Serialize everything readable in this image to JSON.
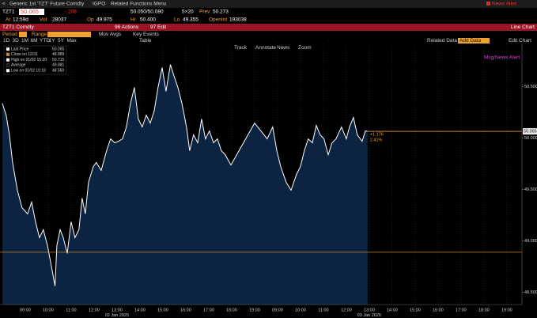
{
  "header": {
    "back": "<",
    "security_desc": "Generic 1st 'TZT' Future Comdty",
    "igpo": "IGPO",
    "related": "Related Functions Menu",
    "news_alert": "News Alert",
    "ticker": "TZT1",
    "price": "50.065",
    "change": "-.208",
    "bid_ask": "50.050/50.080",
    "size": "5×20",
    "prev_label": "Prev",
    "prev": "50.273",
    "at_label": "At",
    "at": "12:59d",
    "vol_label": "Vol",
    "vol": "28037",
    "op_label": "Op",
    "op": "49.975",
    "hi_label": "Hi",
    "hi": "50.400",
    "lo_label": "Lo",
    "lo": "49.355",
    "oi_label": "OpenInt",
    "oi": "193038"
  },
  "toolbar": {
    "security": "TZT1 Comdty",
    "actions": "96 Actions",
    "edit": "97 Edit",
    "chart_type": "Line Chart",
    "period_label": "Period",
    "range_label": "Range",
    "mov_avgs": "Mov Avgs",
    "key_events": "Key Events",
    "ranges": [
      "1D",
      "3D",
      "1M",
      "6M",
      "YTD",
      "1Y",
      "5Y",
      "Max"
    ],
    "table": "Table",
    "tools": [
      "Track",
      "Annotate",
      "News",
      "Zoom"
    ],
    "related_data": "Related Data",
    "add_data": "Add Data",
    "edit_chart": "Edit Chart"
  },
  "chart_data": {
    "type": "line",
    "msg_alert": "Msg/News Alert",
    "legend": [
      {
        "name": "Last Price",
        "value": "50.065"
      },
      {
        "name": "Close on 12/31",
        "value": "48.889"
      },
      {
        "name": "High on 01/02 15:20",
        "value": "50.715"
      },
      {
        "name": "Average",
        "value": "49.881"
      },
      {
        "name": "Low on 01/02 10:18",
        "value": "48.560"
      }
    ],
    "annotation": {
      "change": "+1.176",
      "pct": "2.41%"
    },
    "close_value": 48.889,
    "last_price": 50.065,
    "x": [
      8.0,
      8.17,
      8.31,
      8.45,
      8.66,
      8.86,
      9.1,
      9.28,
      9.45,
      9.62,
      9.79,
      9.97,
      10.1,
      10.3,
      10.38,
      10.52,
      10.66,
      10.83,
      11.0,
      11.17,
      11.34,
      11.48,
      11.62,
      11.76,
      11.97,
      12.1,
      12.31,
      12.55,
      12.72,
      12.9,
      13.07,
      13.24,
      13.41,
      13.59,
      13.76,
      13.93,
      14.1,
      14.28,
      14.45,
      14.62,
      14.79,
      14.97,
      15.14,
      15.33,
      15.48,
      15.66,
      15.83,
      16.03,
      16.17,
      16.34,
      16.52,
      16.69,
      16.86,
      17.03,
      17.21,
      17.38,
      17.55,
      17.72,
      17.97,
      19.0,
      19.28,
      19.55,
      19.79,
      19.97,
      20.14,
      20.38,
      20.59,
      20.83,
      21.0,
      21.17,
      21.34,
      21.52,
      21.69,
      21.86,
      22.03,
      22.21,
      22.38,
      22.55,
      22.79,
      23.0,
      23.14,
      23.31,
      23.48,
      23.69,
      23.83,
      23.93
    ],
    "series": [
      {
        "name": "Last Price",
        "color": "#ffffff",
        "fill": "#0c2442",
        "values": [
          50.338,
          50.223,
          50.031,
          49.762,
          49.492,
          49.323,
          49.262,
          49.377,
          49.185,
          49.031,
          49.108,
          48.954,
          48.8,
          48.56,
          48.954,
          49.108,
          49.031,
          48.877,
          49.185,
          49.031,
          49.108,
          49.415,
          49.262,
          49.569,
          49.723,
          49.762,
          49.685,
          49.877,
          49.992,
          49.954,
          49.969,
          49.992,
          50.108,
          50.338,
          50.492,
          50.185,
          50.108,
          50.223,
          50.146,
          50.262,
          50.492,
          50.685,
          50.454,
          50.715,
          50.608,
          50.492,
          50.338,
          50.108,
          49.877,
          50.031,
          49.954,
          50.185,
          49.992,
          50.069,
          49.954,
          49.992,
          49.877,
          49.838,
          49.738,
          50.146,
          50.069,
          49.992,
          50.108,
          49.877,
          49.723,
          49.569,
          49.492,
          49.646,
          49.723,
          49.877,
          49.992,
          49.954,
          50.123,
          50.031,
          49.992,
          49.838,
          49.954,
          49.992,
          50.108,
          49.992,
          50.108,
          50.2,
          50.031,
          49.969,
          50.069,
          50.065
        ]
      }
    ],
    "xlim": [
      7.9,
      30.66
    ],
    "ylim": [
      48.38,
      50.92
    ],
    "yticks": [
      {
        "value": 48.5,
        "label": "48.500"
      },
      {
        "value": 49,
        "label": "49.000"
      },
      {
        "value": 49.5,
        "label": "49.500"
      },
      {
        "value": 50,
        "label": "50.000"
      },
      {
        "value": 50.5,
        "label": "50.500"
      }
    ],
    "xticks": [
      {
        "value": 9,
        "label": "09:00"
      },
      {
        "value": 10,
        "label": "10:00"
      },
      {
        "value": 11,
        "label": "11:00"
      },
      {
        "value": 12,
        "label": "12:00"
      },
      {
        "value": 13,
        "label": "13:00"
      },
      {
        "value": 14,
        "label": "14:00"
      },
      {
        "value": 15,
        "label": "15:00"
      },
      {
        "value": 16,
        "label": "16:00"
      },
      {
        "value": 17,
        "label": "17:00"
      },
      {
        "value": 18,
        "label": "18:00"
      },
      {
        "value": 19,
        "label": "19:00"
      },
      {
        "value": 20,
        "label": "09:00"
      },
      {
        "value": 21,
        "label": "10:00"
      },
      {
        "value": 22,
        "label": "11:00"
      },
      {
        "value": 23,
        "label": "12:00"
      },
      {
        "value": 24,
        "label": "13:00"
      },
      {
        "value": 25,
        "label": "14:00"
      },
      {
        "value": 26,
        "label": "15:00"
      },
      {
        "value": 27,
        "label": "16:00"
      },
      {
        "value": 28,
        "label": "17:00"
      },
      {
        "value": 29,
        "label": "18:00"
      },
      {
        "value": 30,
        "label": "19:00"
      }
    ],
    "dates": [
      "02 Jan 2025",
      "03 Jan 2025"
    ],
    "grid": true
  }
}
